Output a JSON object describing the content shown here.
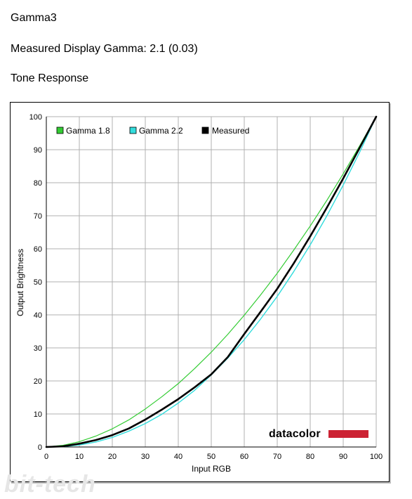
{
  "header": {
    "profile_name": "Gamma3",
    "measured_gamma_text": "Measured Display Gamma: 2.1 (0.03)",
    "section_title": "Tone Response"
  },
  "colors": {
    "gamma18": "#33cc33",
    "gamma22": "#33dddd",
    "measured": "#000000",
    "grid": "#b0b0b0",
    "brand_bar": "#cc2233"
  },
  "brand": {
    "logo_text": "datacolor"
  },
  "watermark": {
    "text": "bit-tech"
  },
  "chart_data": {
    "type": "line",
    "xlabel": "Input RGB",
    "ylabel": "Output Brightness",
    "xlim": [
      0,
      100
    ],
    "ylim": [
      0,
      100
    ],
    "x_ticks": [
      0,
      10,
      20,
      30,
      40,
      50,
      60,
      70,
      80,
      90,
      100
    ],
    "y_ticks": [
      0,
      10,
      20,
      30,
      40,
      50,
      60,
      70,
      80,
      90,
      100
    ],
    "grid": true,
    "legend_position": "top-left",
    "x": [
      0,
      5,
      10,
      15,
      20,
      25,
      30,
      35,
      40,
      45,
      50,
      55,
      60,
      65,
      70,
      75,
      80,
      85,
      90,
      95,
      100
    ],
    "series": [
      {
        "name": "Gamma 1.8",
        "values": [
          0,
          0.5,
          1.6,
          3.3,
          5.5,
          8.2,
          11.5,
          15.2,
          19.2,
          23.8,
          28.7,
          34.1,
          39.9,
          46.1,
          52.6,
          59.6,
          66.9,
          74.6,
          82.7,
          91.2,
          100
        ]
      },
      {
        "name": "Gamma 2.2",
        "values": [
          0,
          0.1,
          0.6,
          1.5,
          2.9,
          4.8,
          7.1,
          9.9,
          13.3,
          17.2,
          21.8,
          26.9,
          32.5,
          38.8,
          45.6,
          53.1,
          61.2,
          69.9,
          79.3,
          89.3,
          100
        ]
      },
      {
        "name": "Measured",
        "values": [
          0,
          0.2,
          1.0,
          2.1,
          3.6,
          5.6,
          8.3,
          11.3,
          14.5,
          18.1,
          22.0,
          27.2,
          34.2,
          41.0,
          47.9,
          55.6,
          63.8,
          72.4,
          81.3,
          90.6,
          100
        ]
      }
    ]
  }
}
